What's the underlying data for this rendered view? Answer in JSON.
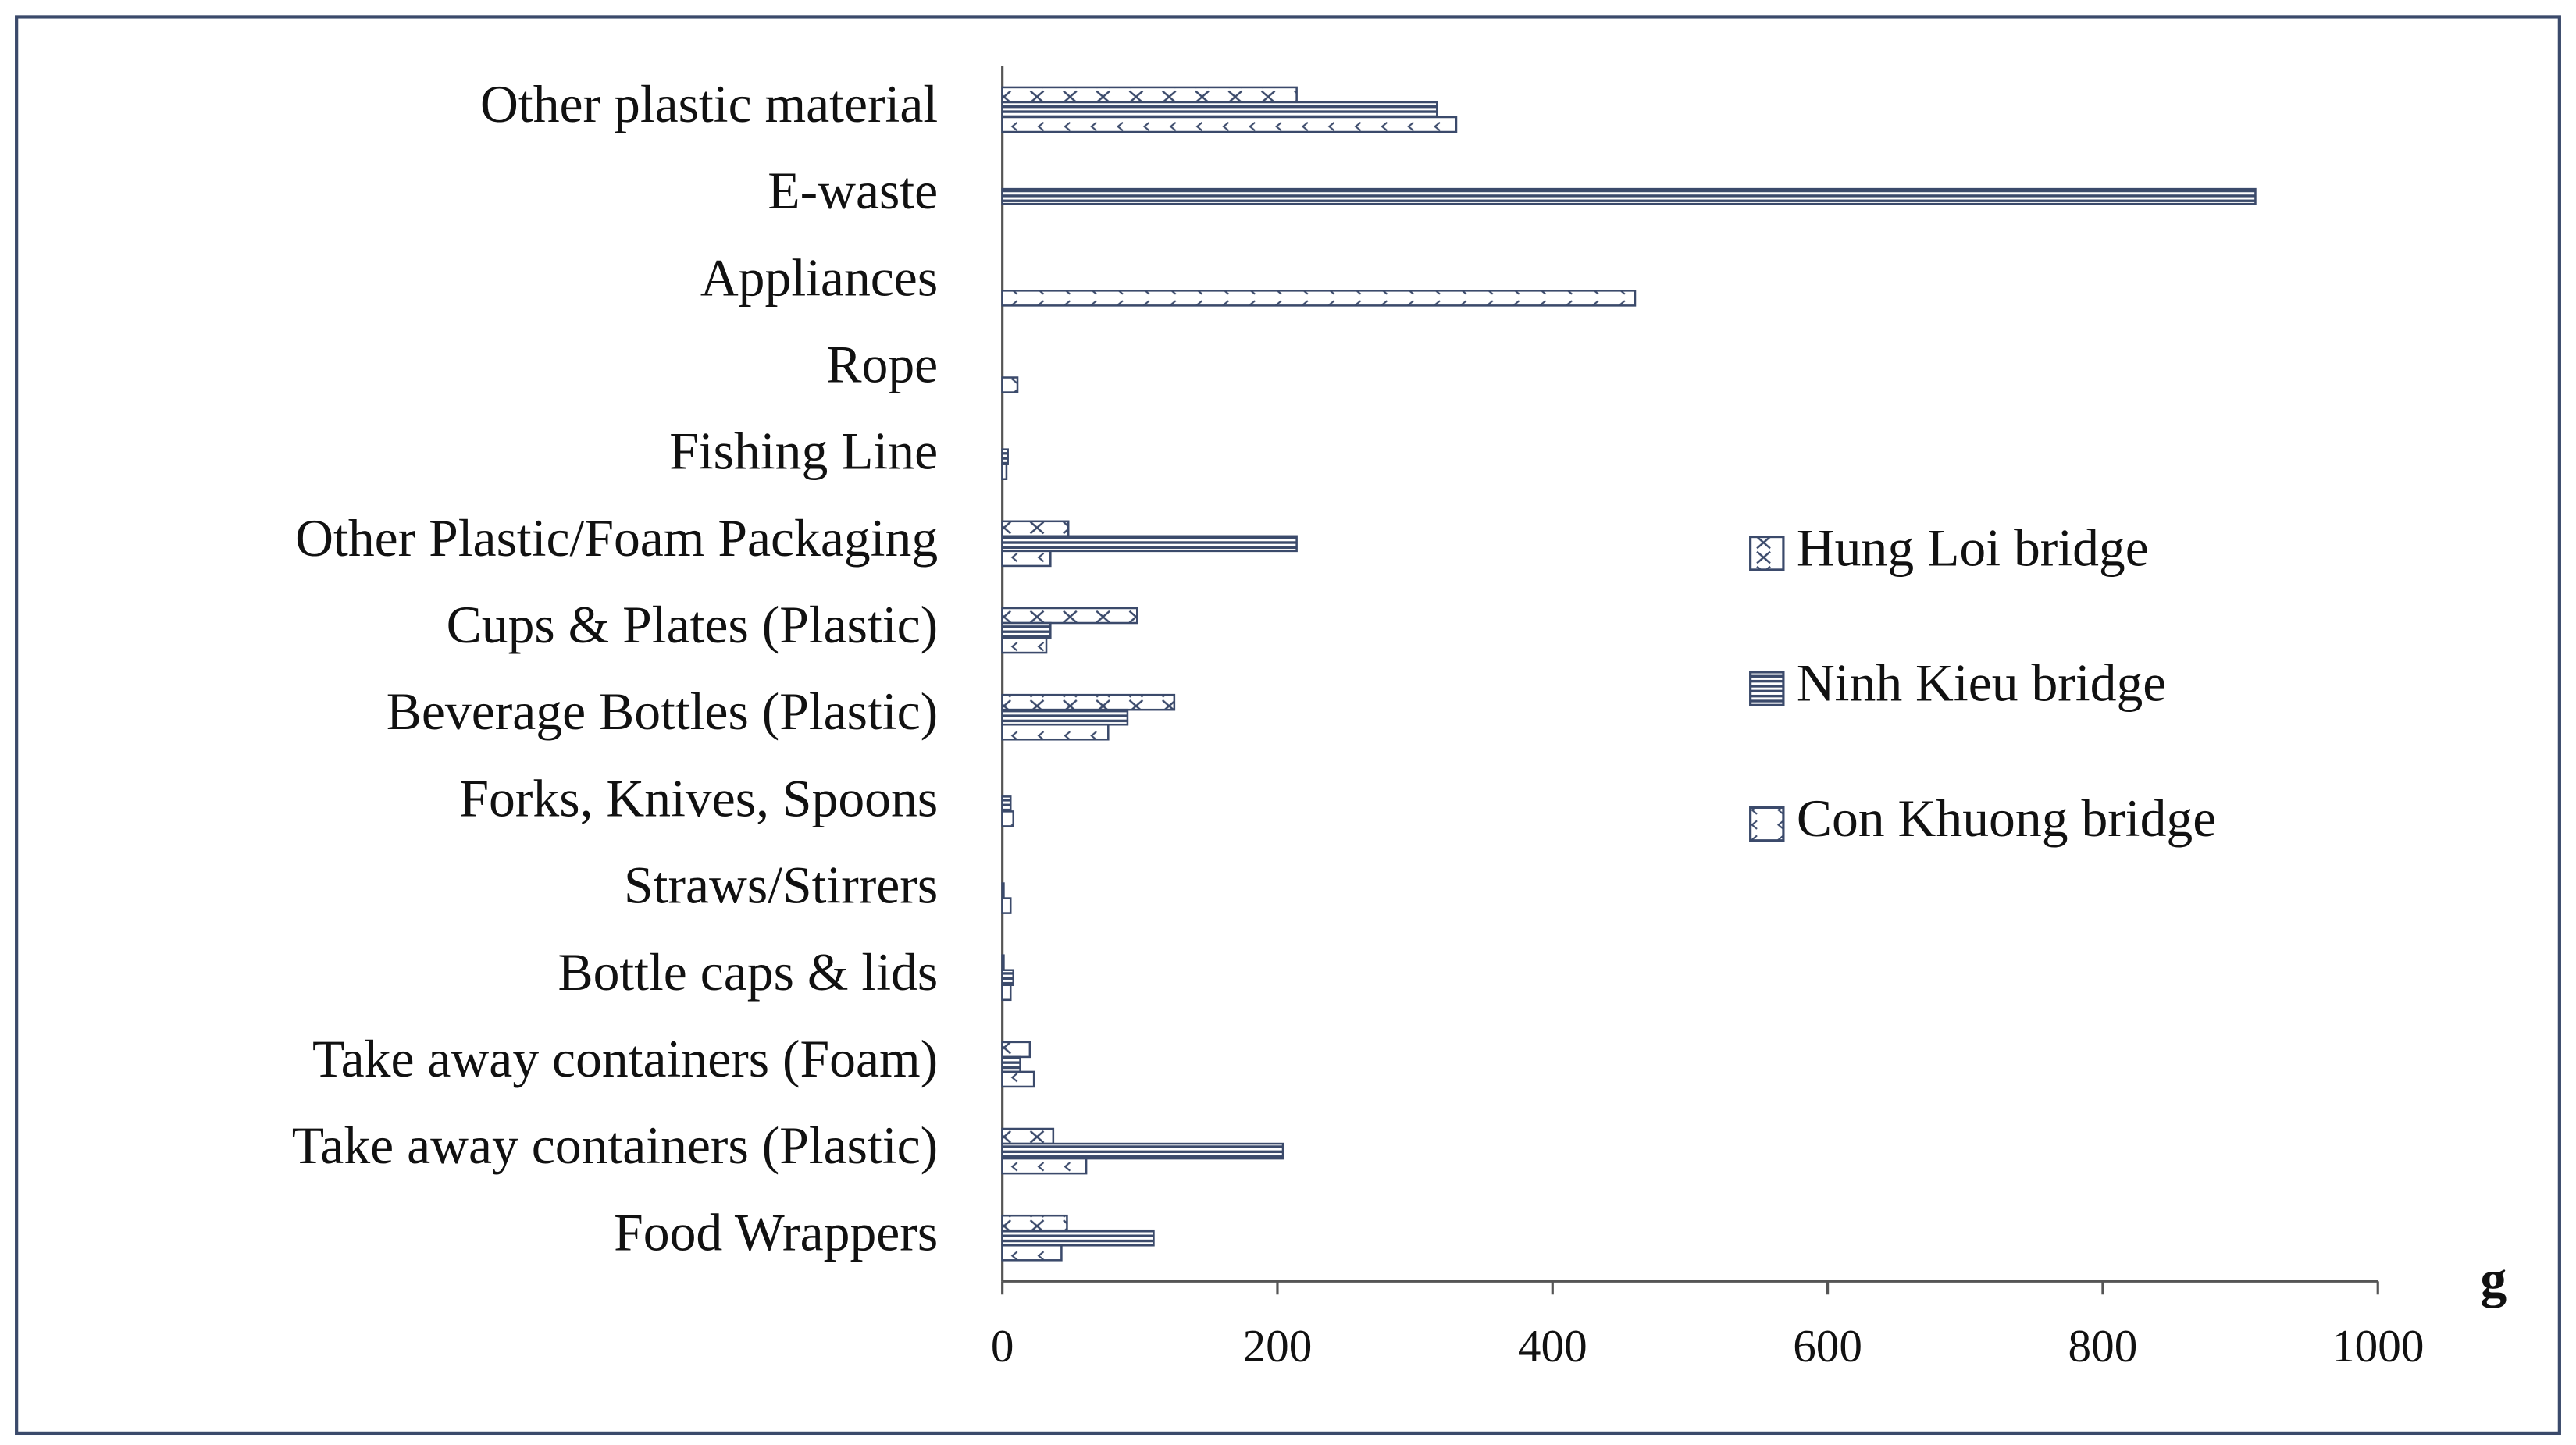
{
  "chart_data": {
    "type": "barh",
    "categories": [
      "Other plastic material",
      "E-waste",
      "Appliances",
      "Rope",
      "Fishing Line",
      "Other Plastic/Foam Packaging",
      "Cups & Plates (Plastic)",
      "Beverage Bottles (Plastic)",
      "Forks, Knives, Spoons",
      "Straws/Stirrers",
      "Bottle caps & lids",
      "Take away containers (Foam)",
      "Take away containers (Plastic)",
      "Food Wrappers"
    ],
    "series": [
      {
        "name": "Hung Loi bridge",
        "color": "#3b4a6b",
        "pattern": "cross",
        "values": [
          214,
          0,
          0,
          0,
          0,
          48,
          98,
          125,
          0,
          0,
          1,
          20,
          37,
          47
        ]
      },
      {
        "name": "Ninh Kieu bridge",
        "color": "#3b4a6b",
        "pattern": "horizontal",
        "values": [
          316,
          911,
          0,
          0,
          4,
          214,
          35,
          91,
          6,
          1,
          8,
          13,
          204,
          110
        ]
      },
      {
        "name": "Con Khuong bridge",
        "color": "#3b4a6b",
        "pattern": "dots",
        "values": [
          330,
          0,
          460,
          11,
          3,
          35,
          32,
          77,
          8,
          6,
          6,
          23,
          61,
          43
        ]
      }
    ],
    "x_label": "g",
    "xlim": [
      0,
      1000
    ],
    "xticks": [
      0,
      200,
      400,
      600,
      800,
      1000
    ],
    "legend": "right"
  }
}
